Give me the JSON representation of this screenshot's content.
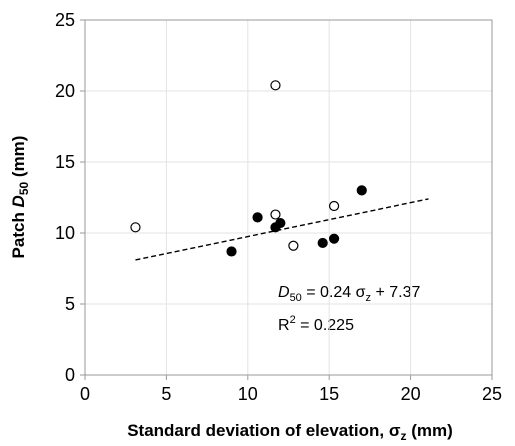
{
  "chart_data": {
    "type": "scatter",
    "x_label": [
      "Standard deviation of elevation, σ",
      "z",
      " (mm)"
    ],
    "y_label": [
      "Patch ",
      "D",
      "50",
      " (mm)"
    ],
    "xlim": [
      0,
      25
    ],
    "xticks": [
      0,
      5,
      10,
      15,
      20,
      25
    ],
    "ylim": [
      0,
      25
    ],
    "yticks": [
      0,
      5,
      10,
      15,
      20,
      25
    ],
    "grid": true,
    "series": [
      {
        "marker": "filled",
        "color": "#000000",
        "x": [
          9.0,
          10.6,
          11.7,
          12.0,
          14.6,
          15.3,
          17.0
        ],
        "values": [
          8.7,
          11.1,
          10.4,
          10.7,
          9.3,
          9.6,
          13.0
        ]
      },
      {
        "marker": "open",
        "color": "#000000",
        "x": [
          3.1,
          11.7,
          11.7,
          12.8,
          15.3
        ],
        "values": [
          10.4,
          20.4,
          11.3,
          9.1,
          11.9
        ]
      }
    ],
    "trendline": {
      "x": [
        3.1,
        21.1
      ],
      "values": [
        8.1,
        12.4
      ]
    },
    "annotations": [
      [
        "D",
        "50",
        " = 0.24 σ",
        "z",
        " + 7.37"
      ],
      [
        "R",
        "2",
        " = 0.225"
      ]
    ]
  }
}
